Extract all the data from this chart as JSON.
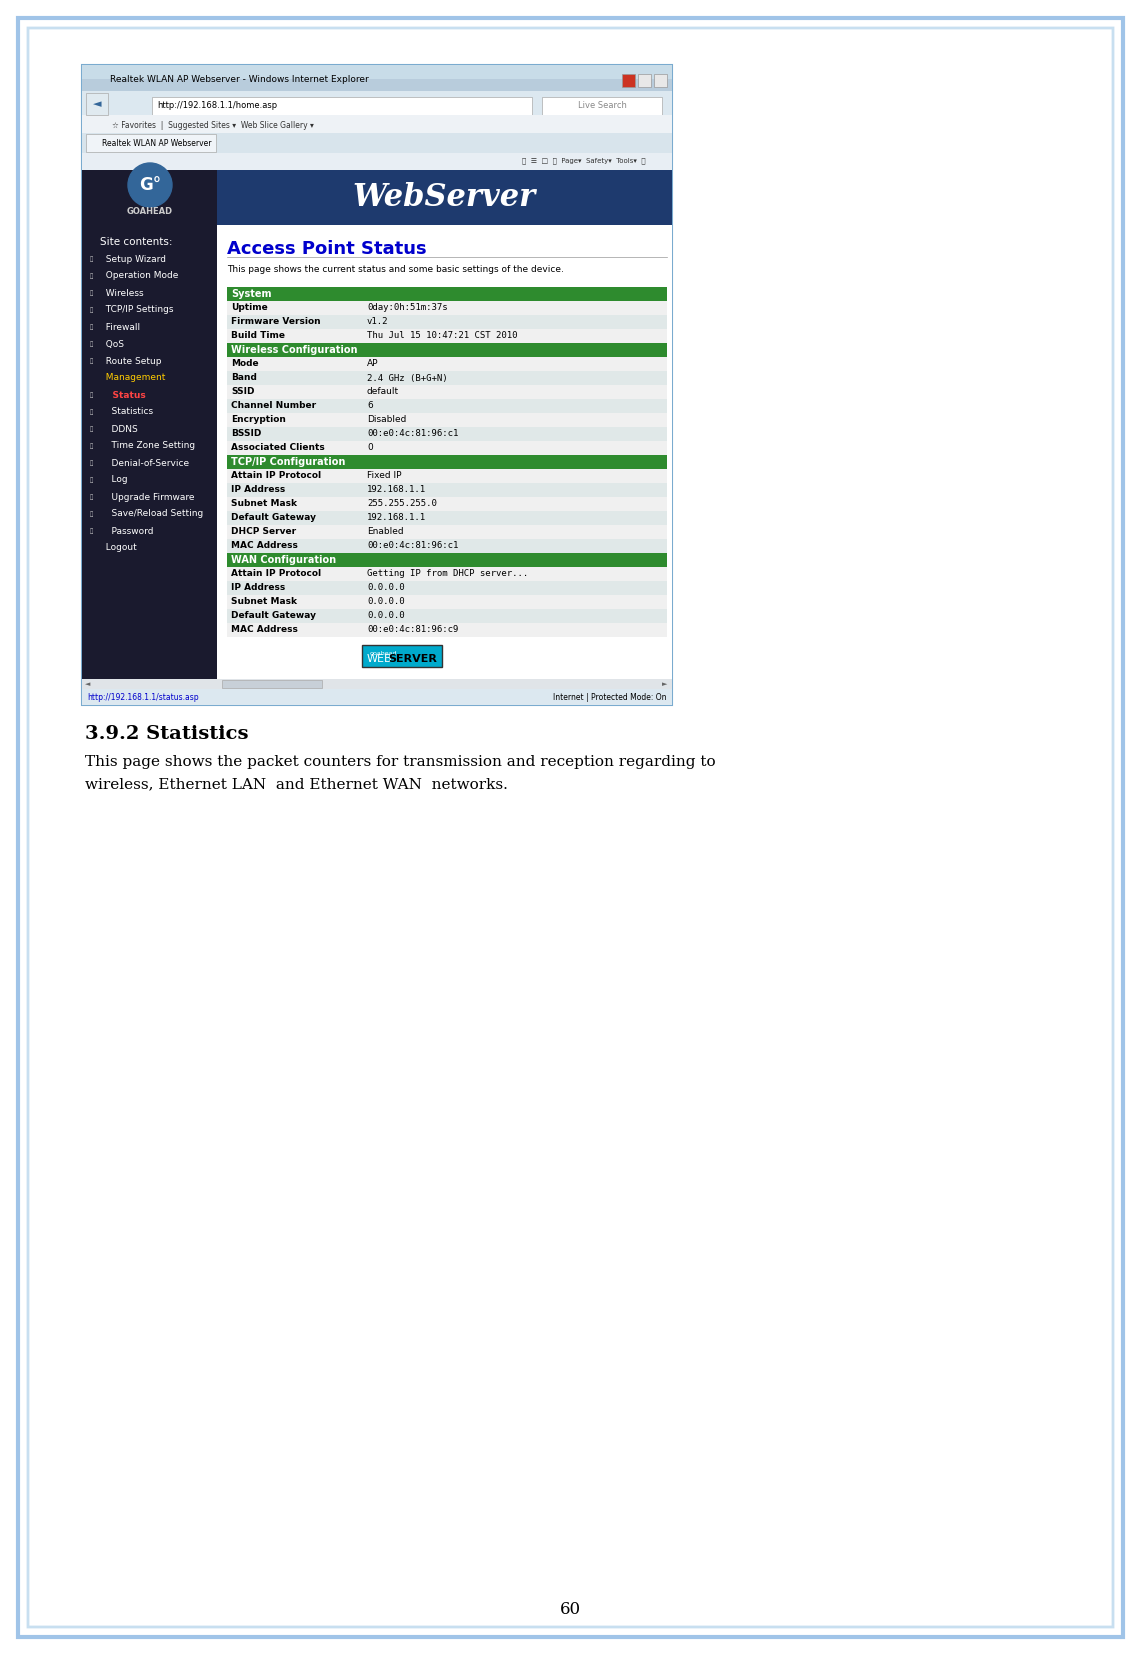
{
  "page_bg": "#ffffff",
  "border_outer_color": "#a0c4e8",
  "border_inner_color": "#c8dff0",
  "page_number": "60",
  "section_title": "3.9.2 Statistics",
  "section_body": "This page shows the packet counters for transmission and reception regarding to\nwireless, Ethernet LAN  and Ethernet WAN  networks.",
  "browser_title": "Realtek WLAN AP Webserver - Windows Internet Explorer",
  "browser_url": "http://192.168.1.1/home.asp",
  "browser_tab": "Realtek WLAN AP Webserver",
  "webserver_title": "WebServer",
  "page_heading": "Access Point Status",
  "page_subtext": "This page shows the current status and some basic settings of the device.",
  "nav_items": [
    "Site contents:",
    "  Setup Wizard",
    "  Operation Mode",
    "  Wireless",
    "  TCP/IP Settings",
    "  Firewall",
    "  QoS",
    "  Route Setup",
    "  Management",
    "    Status",
    "    Statistics",
    "    DDNS",
    "    Time Zone Setting",
    "    Denial-of-Service",
    "    Log",
    "    Upgrade Firmware",
    "    Save/Reload Setting",
    "    Password",
    "  Logout"
  ],
  "nav_colors": [
    "white",
    "white",
    "white",
    "white",
    "white",
    "white",
    "white",
    "white",
    "yellow",
    "red",
    "white",
    "white",
    "white",
    "white",
    "white",
    "white",
    "white",
    "white",
    "white"
  ],
  "sections": [
    {
      "header": "System",
      "rows": [
        [
          "Uptime",
          "0day:0h:51m:37s"
        ],
        [
          "Firmware Version",
          "v1.2"
        ],
        [
          "Build Time",
          "Thu Jul 15 10:47:21 CST 2010"
        ]
      ]
    },
    {
      "header": "Wireless Configuration",
      "rows": [
        [
          "Mode",
          "AP"
        ],
        [
          "Band",
          "2.4 GHz (B+G+N)"
        ],
        [
          "SSID",
          "default"
        ],
        [
          "Channel Number",
          "6"
        ],
        [
          "Encryption",
          "Disabled"
        ],
        [
          "BSSID",
          "00:e0:4c:81:96:c1"
        ],
        [
          "Associated Clients",
          "0"
        ]
      ]
    },
    {
      "header": "TCP/IP Configuration",
      "rows": [
        [
          "Attain IP Protocol",
          "Fixed IP"
        ],
        [
          "IP Address",
          "192.168.1.1"
        ],
        [
          "Subnet Mask",
          "255.255.255.0"
        ],
        [
          "Default Gateway",
          "192.168.1.1"
        ],
        [
          "DHCP Server",
          "Enabled"
        ],
        [
          "MAC Address",
          "00:e0:4c:81:96:c1"
        ]
      ]
    },
    {
      "header": "WAN Configuration",
      "rows": [
        [
          "Attain IP Protocol",
          "Getting IP from DHCP server..."
        ],
        [
          "IP Address",
          "0.0.0.0"
        ],
        [
          "Subnet Mask",
          "0.0.0.0"
        ],
        [
          "Default Gateway",
          "0.0.0.0"
        ],
        [
          "MAC Address",
          "00:e0:4c:81:96:c9"
        ]
      ]
    }
  ],
  "header_color": "#2e8b2e",
  "header_text_color": "#ffffff",
  "row_colors": [
    "#f0f0f0",
    "#e0e8e8"
  ],
  "label_font_color": "#000000",
  "value_font_color": "#000000",
  "status_bar_url": "http://192.168.1.1/status.asp",
  "status_bar_right": "Internet | Protected Mode: On"
}
